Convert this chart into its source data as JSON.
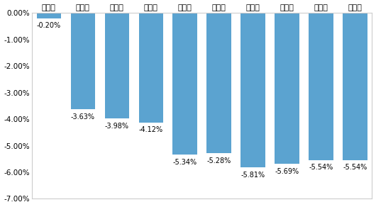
{
  "categories": [
    "第一个",
    "第二个",
    "第三个",
    "第四个",
    "第五个",
    "第六个",
    "第七个",
    "第八个",
    "第九个",
    "第十个"
  ],
  "values": [
    -0.002,
    -0.0363,
    -0.0398,
    -0.0412,
    -0.0534,
    -0.0528,
    -0.0581,
    -0.0569,
    -0.0554,
    -0.0554
  ],
  "labels": [
    "-0.20%",
    "-3.63%",
    "-3.98%",
    "-4.12%",
    "-5.34%",
    "-5.28%",
    "-5.81%",
    "-5.69%",
    "-5.54%",
    "-5.54%"
  ],
  "bar_color": "#5BA3D0",
  "ylim": [
    -0.07,
    0.0
  ],
  "yticks": [
    0.0,
    -0.01,
    -0.02,
    -0.03,
    -0.04,
    -0.05,
    -0.06,
    -0.07
  ],
  "ytick_labels": [
    "0.00%",
    "-1.00%",
    "-2.00%",
    "-3.00%",
    "-4.00%",
    "-5.00%",
    "-6.00%",
    "-7.00%"
  ],
  "background_color": "#FFFFFF",
  "grid_color": "#FFFFFF",
  "border_color": "#CCCCCC",
  "label_fontsize": 7,
  "tick_fontsize": 7.5,
  "cat_fontsize": 8
}
